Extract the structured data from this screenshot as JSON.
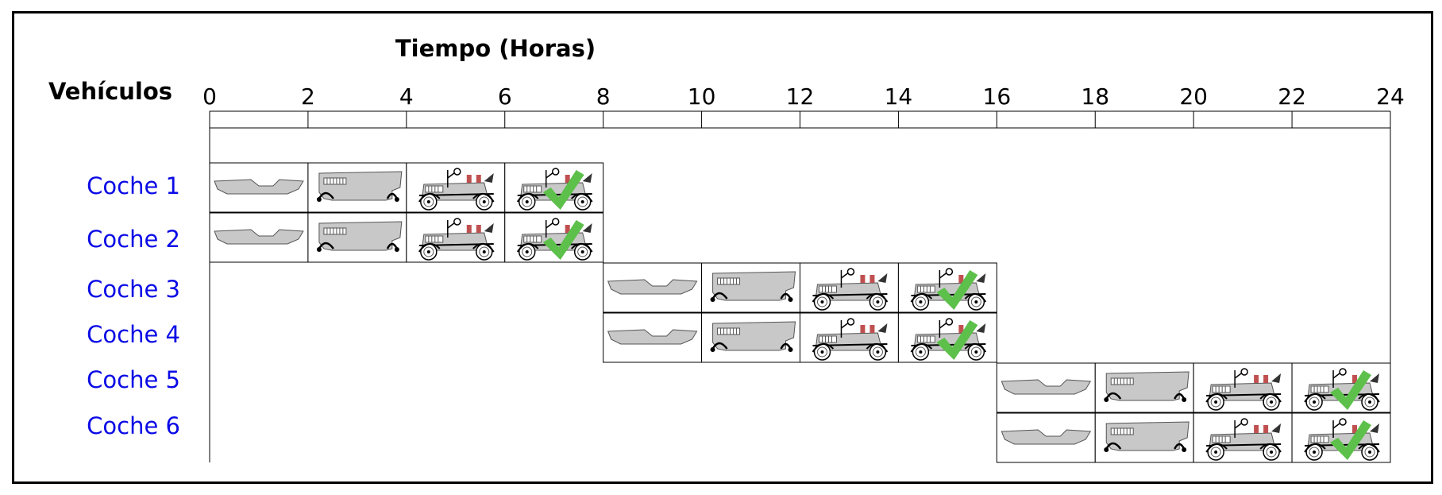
{
  "titles": {
    "time_axis": "Tiempo (Horas)",
    "vehicles": "Vehículos"
  },
  "chart_data": {
    "type": "gantt",
    "x_ticks": [
      0,
      2,
      4,
      6,
      8,
      10,
      12,
      14,
      16,
      18,
      20,
      22,
      24
    ],
    "xlim": [
      0,
      24
    ],
    "stages": [
      "chassis",
      "frame-with-wheels",
      "car-with-engine",
      "finished-car-checked"
    ],
    "stage_icons": [
      "chassis-icon",
      "frame-icon",
      "car-icon",
      "checked-car-icon"
    ],
    "check_color": "#5cc04a",
    "rows": [
      {
        "label": "Coche 1",
        "start": 0,
        "stage_hours": 2
      },
      {
        "label": "Coche 2",
        "start": 0,
        "stage_hours": 2
      },
      {
        "label": "Coche 3",
        "start": 8,
        "stage_hours": 2
      },
      {
        "label": "Coche 4",
        "start": 8,
        "stage_hours": 2
      },
      {
        "label": "Coche 5",
        "start": 16,
        "stage_hours": 2
      },
      {
        "label": "Coche 6",
        "start": 16,
        "stage_hours": 2
      }
    ]
  }
}
